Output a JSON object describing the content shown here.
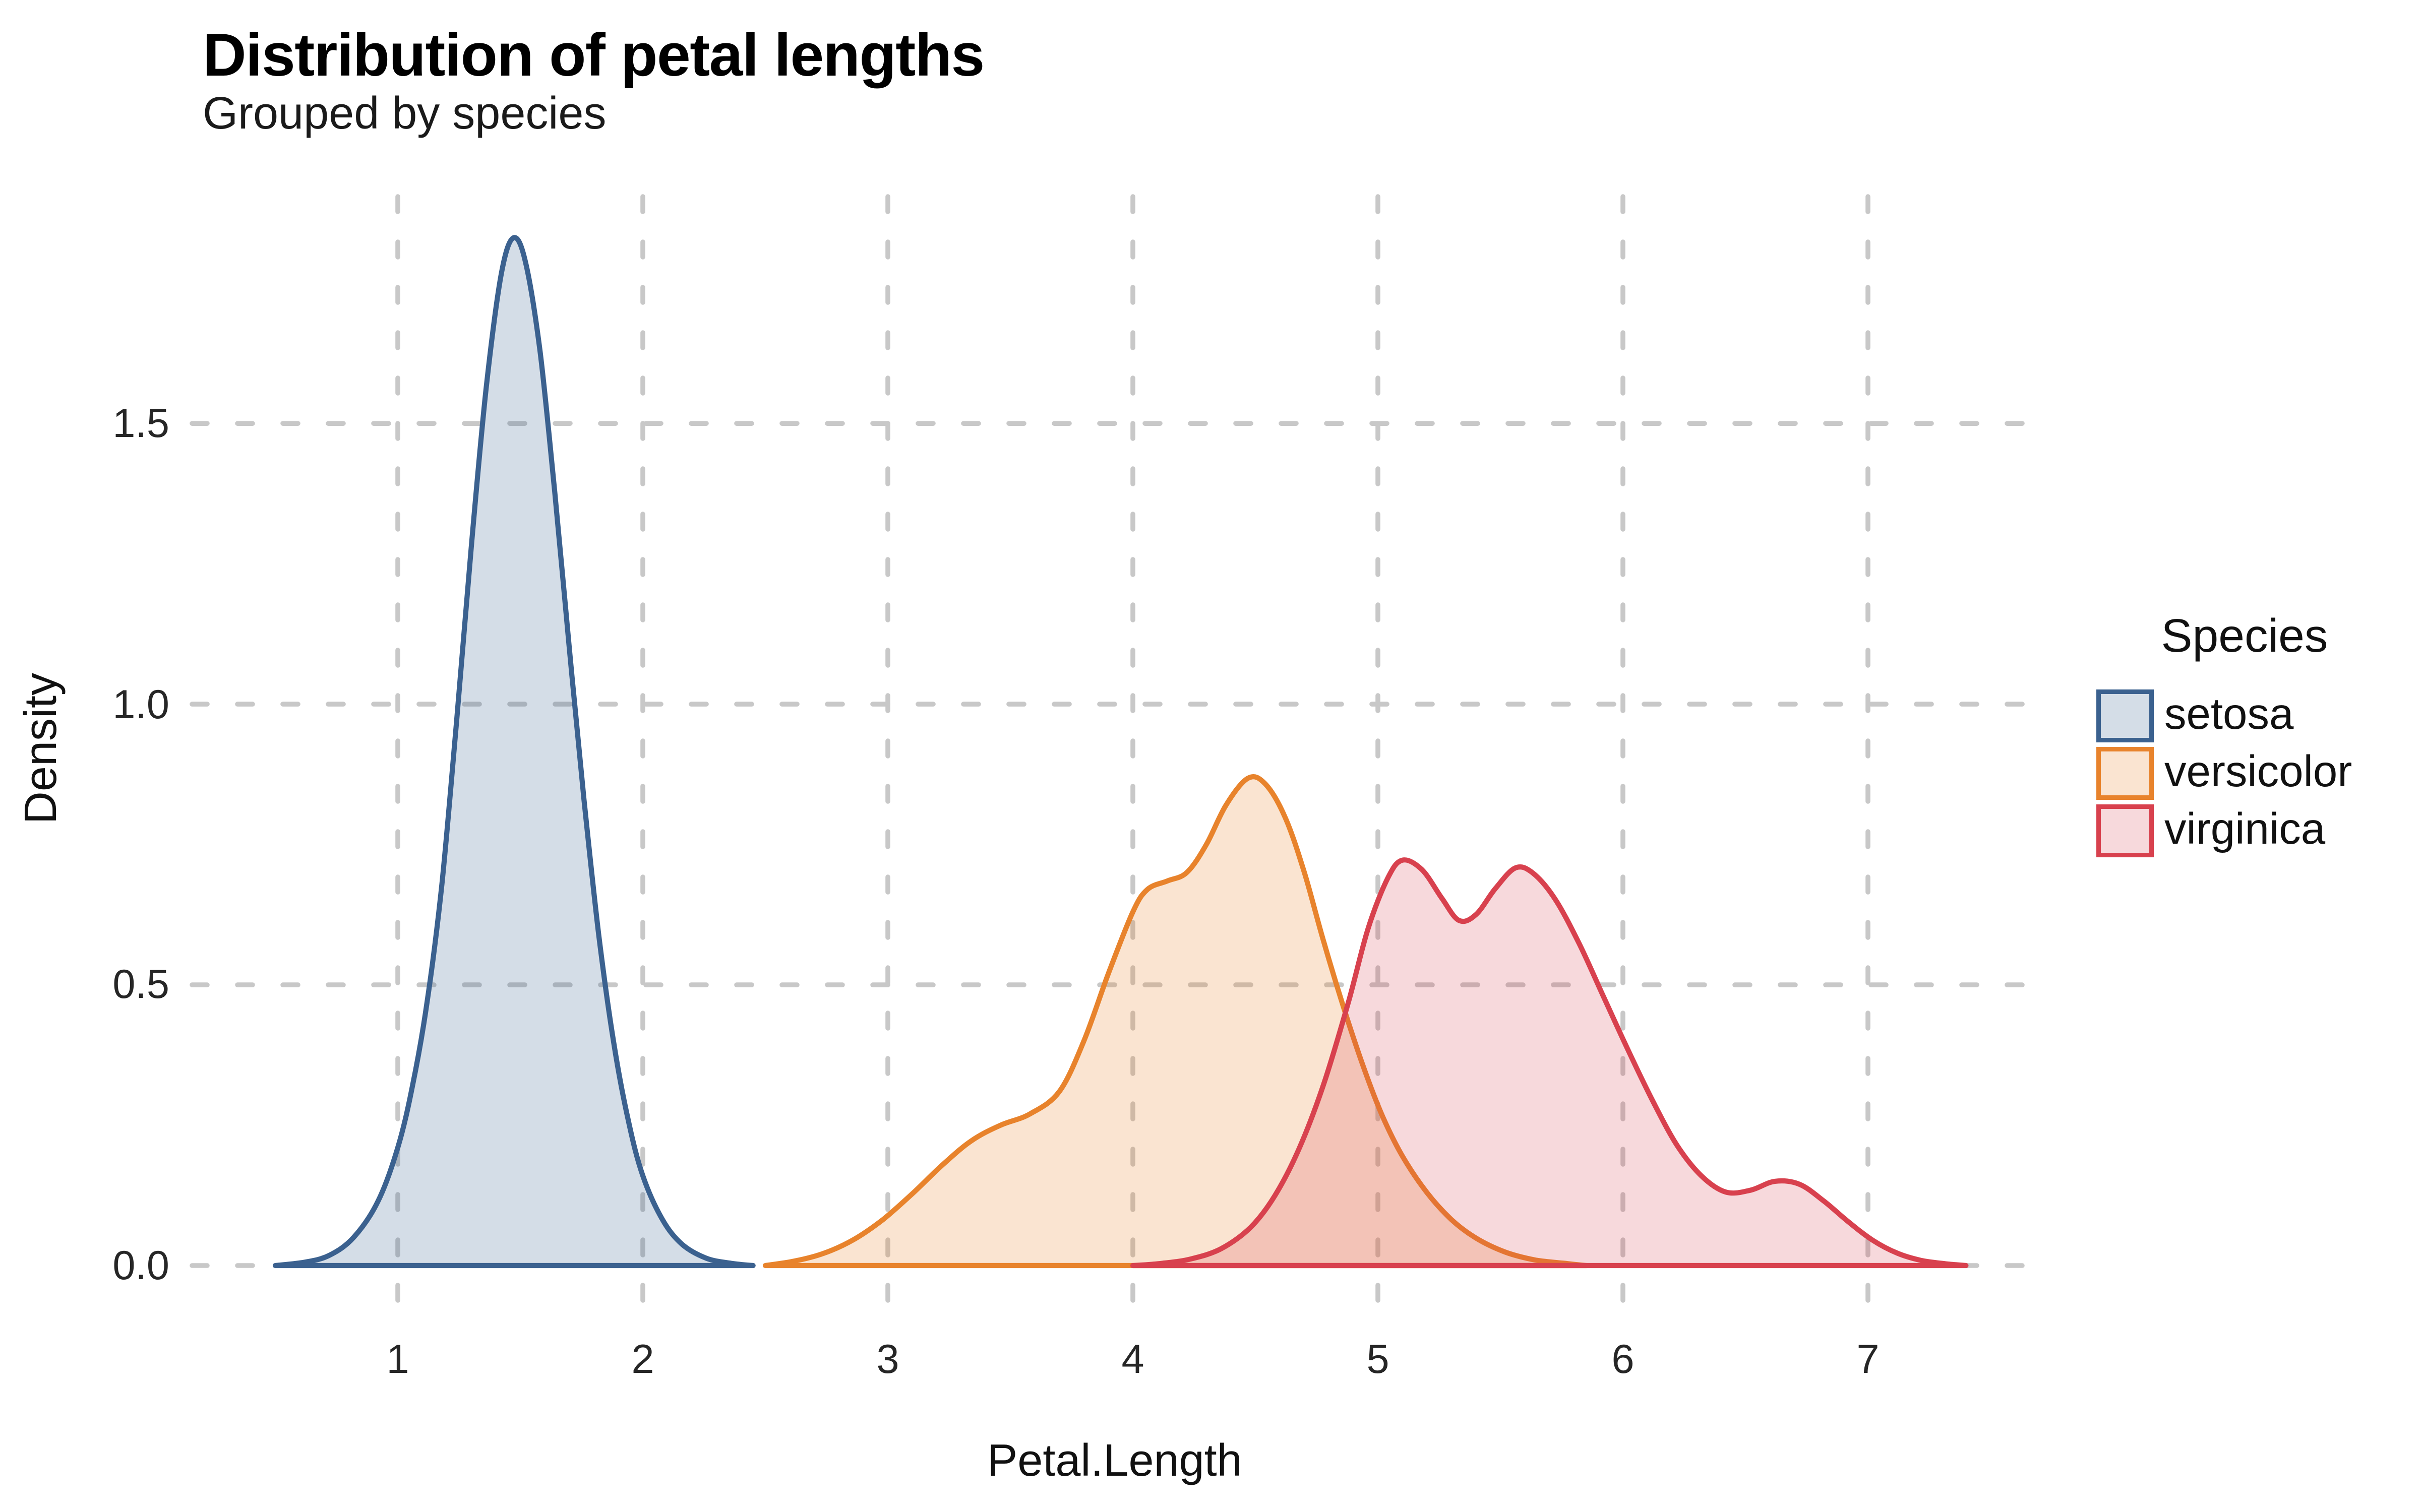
{
  "chart_data": {
    "type": "area",
    "title": "Distribution of petal lengths",
    "subtitle": "Grouped by species",
    "xlabel": "Petal.Length",
    "ylabel": "Density",
    "legend": {
      "title": "Species",
      "position": "right"
    },
    "axes": {
      "x": {
        "tick_labels": [
          "1",
          "2",
          "3",
          "4",
          "5",
          "6",
          "7"
        ],
        "tick_values": [
          1,
          2,
          3,
          4,
          5,
          6,
          7
        ],
        "range": [
          0.16,
          7.69
        ],
        "grid": "dashed"
      },
      "y": {
        "tick_labels": [
          "0.0",
          "0.5",
          "1.0",
          "1.5"
        ],
        "tick_values": [
          0,
          0.5,
          1.0,
          1.5
        ],
        "range": [
          -0.07,
          1.91
        ],
        "grid": "dashed"
      }
    },
    "grid_color": "#c8c8c8",
    "background": "#ffffff",
    "series": [
      {
        "name": "setosa",
        "stroke": "#3b618f",
        "fill": "rgba(61,100,146,0.22)",
        "points": [
          [
            0.5,
            0
          ],
          [
            0.62,
            0.006
          ],
          [
            0.72,
            0.018
          ],
          [
            0.82,
            0.05
          ],
          [
            0.92,
            0.115
          ],
          [
            1.0,
            0.21
          ],
          [
            1.06,
            0.32
          ],
          [
            1.12,
            0.47
          ],
          [
            1.18,
            0.68
          ],
          [
            1.24,
            0.97
          ],
          [
            1.3,
            1.28
          ],
          [
            1.36,
            1.56
          ],
          [
            1.42,
            1.76
          ],
          [
            1.47,
            1.83
          ],
          [
            1.52,
            1.79
          ],
          [
            1.58,
            1.63
          ],
          [
            1.64,
            1.38
          ],
          [
            1.7,
            1.1
          ],
          [
            1.76,
            0.83
          ],
          [
            1.82,
            0.59
          ],
          [
            1.88,
            0.4
          ],
          [
            1.94,
            0.26
          ],
          [
            2.0,
            0.16
          ],
          [
            2.08,
            0.082
          ],
          [
            2.16,
            0.038
          ],
          [
            2.26,
            0.013
          ],
          [
            2.36,
            0.004
          ],
          [
            2.45,
            0
          ]
        ]
      },
      {
        "name": "versicolor",
        "stroke": "#e8832c",
        "fill": "rgba(233,131,44,0.22)",
        "points": [
          [
            2.5,
            0
          ],
          [
            2.62,
            0.008
          ],
          [
            2.74,
            0.022
          ],
          [
            2.86,
            0.046
          ],
          [
            2.98,
            0.082
          ],
          [
            3.1,
            0.128
          ],
          [
            3.22,
            0.178
          ],
          [
            3.34,
            0.222
          ],
          [
            3.46,
            0.25
          ],
          [
            3.58,
            0.27
          ],
          [
            3.7,
            0.31
          ],
          [
            3.8,
            0.4
          ],
          [
            3.9,
            0.52
          ],
          [
            4.0,
            0.63
          ],
          [
            4.06,
            0.67
          ],
          [
            4.14,
            0.685
          ],
          [
            4.22,
            0.7
          ],
          [
            4.3,
            0.75
          ],
          [
            4.38,
            0.82
          ],
          [
            4.47,
            0.868
          ],
          [
            4.54,
            0.858
          ],
          [
            4.62,
            0.8
          ],
          [
            4.7,
            0.7
          ],
          [
            4.78,
            0.575
          ],
          [
            4.86,
            0.46
          ],
          [
            4.94,
            0.355
          ],
          [
            5.02,
            0.265
          ],
          [
            5.1,
            0.195
          ],
          [
            5.2,
            0.13
          ],
          [
            5.3,
            0.082
          ],
          [
            5.4,
            0.049
          ],
          [
            5.52,
            0.024
          ],
          [
            5.64,
            0.01
          ],
          [
            5.76,
            0.004
          ],
          [
            5.85,
            0
          ]
        ]
      },
      {
        "name": "virginica",
        "stroke": "#d8414e",
        "fill": "rgba(216,65,78,0.20)",
        "points": [
          [
            4.0,
            0
          ],
          [
            4.12,
            0.004
          ],
          [
            4.24,
            0.012
          ],
          [
            4.36,
            0.03
          ],
          [
            4.48,
            0.068
          ],
          [
            4.58,
            0.125
          ],
          [
            4.68,
            0.21
          ],
          [
            4.78,
            0.325
          ],
          [
            4.88,
            0.47
          ],
          [
            4.96,
            0.6
          ],
          [
            5.04,
            0.69
          ],
          [
            5.1,
            0.722
          ],
          [
            5.18,
            0.705
          ],
          [
            5.26,
            0.655
          ],
          [
            5.33,
            0.615
          ],
          [
            5.4,
            0.625
          ],
          [
            5.48,
            0.672
          ],
          [
            5.56,
            0.708
          ],
          [
            5.63,
            0.7
          ],
          [
            5.72,
            0.655
          ],
          [
            5.82,
            0.575
          ],
          [
            5.92,
            0.48
          ],
          [
            6.02,
            0.385
          ],
          [
            6.12,
            0.295
          ],
          [
            6.22,
            0.215
          ],
          [
            6.32,
            0.16
          ],
          [
            6.42,
            0.131
          ],
          [
            6.52,
            0.134
          ],
          [
            6.62,
            0.15
          ],
          [
            6.72,
            0.145
          ],
          [
            6.82,
            0.115
          ],
          [
            6.92,
            0.078
          ],
          [
            7.02,
            0.045
          ],
          [
            7.12,
            0.022
          ],
          [
            7.22,
            0.009
          ],
          [
            7.32,
            0.003
          ],
          [
            7.4,
            0
          ]
        ]
      }
    ]
  }
}
